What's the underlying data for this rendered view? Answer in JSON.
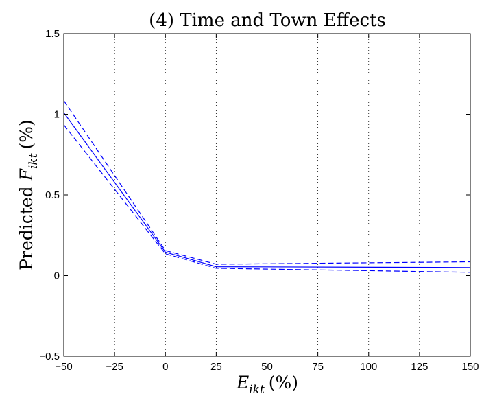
{
  "chart_data": {
    "type": "line",
    "title": "(4) Time and Town Effects",
    "xlabel": {
      "var": "E",
      "sub": "ikt",
      "unit": "(%)"
    },
    "ylabel": {
      "prefix": "Predicted",
      "var": "F",
      "sub": "ikt",
      "unit": "(%)"
    },
    "xlim": [
      -50,
      150
    ],
    "ylim": [
      -0.5,
      1.5
    ],
    "xticks": [
      -50,
      -25,
      0,
      25,
      50,
      75,
      100,
      125,
      150
    ],
    "xtick_labels": [
      "−50",
      "−25",
      "0",
      "25",
      "50",
      "75",
      "100",
      "125",
      "150"
    ],
    "yticks": [
      -0.5,
      0,
      0.5,
      1,
      1.5
    ],
    "ytick_labels": [
      "−0.5",
      "0",
      "0.5",
      "1",
      "1.5"
    ],
    "grid": {
      "x": "dotted",
      "y": "none"
    },
    "color": "#0000ff",
    "series": [
      {
        "style": "solid",
        "x": [
          -50,
          0,
          25,
          150
        ],
        "y": [
          1.01,
          0.145,
          0.055,
          0.05
        ]
      },
      {
        "style": "dashed",
        "x": [
          -50,
          0,
          25,
          150
        ],
        "y": [
          1.085,
          0.155,
          0.07,
          0.085
        ]
      },
      {
        "style": "dashed",
        "x": [
          -50,
          0,
          25,
          150
        ],
        "y": [
          0.935,
          0.135,
          0.045,
          0.02
        ]
      }
    ]
  }
}
